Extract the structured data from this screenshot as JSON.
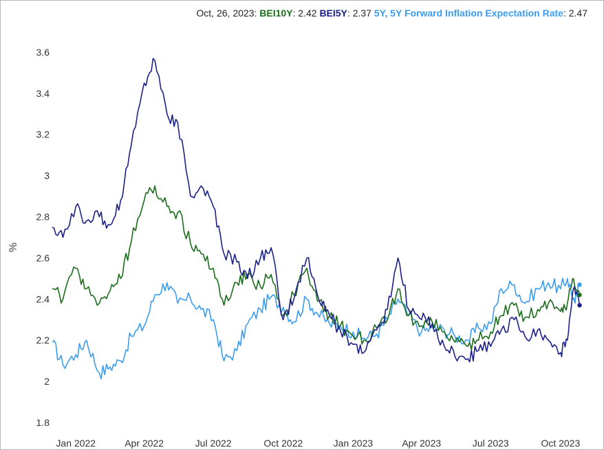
{
  "legend": {
    "date": "Oct, 26, 2023",
    "items": [
      {
        "name": "BEI10Y",
        "value": "2.42",
        "color": "#1a6b1a"
      },
      {
        "name": "BEI5Y",
        "value": "2.37",
        "color": "#1a1f8a"
      },
      {
        "name": "5Y, 5Y Forward Inflation Expectation Rate",
        "value": "2.47",
        "color": "#3a9cf0"
      }
    ]
  },
  "chart_data": {
    "type": "line",
    "ylabel": "%",
    "ylim": [
      1.75,
      3.72
    ],
    "xlim": [
      "2021-12-01",
      "2023-10-31"
    ],
    "yticks": [
      "1.8",
      "2",
      "2.2",
      "2.4",
      "2.6",
      "2.8",
      "3",
      "3.2",
      "3.4",
      "3.6"
    ],
    "xticks": [
      {
        "date": "2022-01-01",
        "label": "Jan 2022"
      },
      {
        "date": "2022-04-01",
        "label": "Apr 2022"
      },
      {
        "date": "2022-07-01",
        "label": "Jul 2022"
      },
      {
        "date": "2022-10-01",
        "label": "Oct 2022"
      },
      {
        "date": "2023-01-01",
        "label": "Jan 2023"
      },
      {
        "date": "2023-04-01",
        "label": "Apr 2023"
      },
      {
        "date": "2023-07-01",
        "label": "Jul 2023"
      },
      {
        "date": "2023-10-01",
        "label": "Oct 2023"
      }
    ],
    "grid": false,
    "series": [
      {
        "name": "5Y, 5Y Forward Inflation Expectation Rate",
        "color": "#3a9cf0",
        "points": [
          [
            "2021-12-01",
            2.19
          ],
          [
            "2021-12-15",
            2.08
          ],
          [
            "2022-01-01",
            2.13
          ],
          [
            "2022-01-15",
            2.2
          ],
          [
            "2022-02-01",
            2.04
          ],
          [
            "2022-02-15",
            2.07
          ],
          [
            "2022-03-01",
            2.1
          ],
          [
            "2022-03-15",
            2.22
          ],
          [
            "2022-04-01",
            2.27
          ],
          [
            "2022-04-15",
            2.42
          ],
          [
            "2022-05-01",
            2.48
          ],
          [
            "2022-05-15",
            2.38
          ],
          [
            "2022-06-01",
            2.4
          ],
          [
            "2022-06-15",
            2.35
          ],
          [
            "2022-07-01",
            2.3
          ],
          [
            "2022-07-15",
            2.1
          ],
          [
            "2022-08-01",
            2.15
          ],
          [
            "2022-08-15",
            2.28
          ],
          [
            "2022-09-01",
            2.35
          ],
          [
            "2022-09-15",
            2.41
          ],
          [
            "2022-10-01",
            2.36
          ],
          [
            "2022-10-15",
            2.29
          ],
          [
            "2022-11-01",
            2.4
          ],
          [
            "2022-11-15",
            2.33
          ],
          [
            "2022-12-01",
            2.28
          ],
          [
            "2022-12-15",
            2.27
          ],
          [
            "2023-01-01",
            2.24
          ],
          [
            "2023-01-15",
            2.21
          ],
          [
            "2023-02-01",
            2.23
          ],
          [
            "2023-02-15",
            2.3
          ],
          [
            "2023-03-01",
            2.4
          ],
          [
            "2023-03-15",
            2.32
          ],
          [
            "2023-04-01",
            2.24
          ],
          [
            "2023-04-15",
            2.26
          ],
          [
            "2023-05-01",
            2.25
          ],
          [
            "2023-05-15",
            2.22
          ],
          [
            "2023-06-01",
            2.2
          ],
          [
            "2023-06-15",
            2.26
          ],
          [
            "2023-07-01",
            2.28
          ],
          [
            "2023-07-15",
            2.45
          ],
          [
            "2023-08-01",
            2.47
          ],
          [
            "2023-08-15",
            2.38
          ],
          [
            "2023-09-01",
            2.45
          ],
          [
            "2023-09-15",
            2.48
          ],
          [
            "2023-10-01",
            2.45
          ],
          [
            "2023-10-10",
            2.5
          ],
          [
            "2023-10-20",
            2.38
          ],
          [
            "2023-10-26",
            2.47
          ]
        ]
      },
      {
        "name": "BEI10Y",
        "color": "#1a6b1a",
        "points": [
          [
            "2021-12-01",
            2.45
          ],
          [
            "2021-12-15",
            2.4
          ],
          [
            "2022-01-01",
            2.55
          ],
          [
            "2022-01-15",
            2.45
          ],
          [
            "2022-02-01",
            2.38
          ],
          [
            "2022-02-15",
            2.44
          ],
          [
            "2022-03-01",
            2.5
          ],
          [
            "2022-03-15",
            2.68
          ],
          [
            "2022-04-01",
            2.88
          ],
          [
            "2022-04-15",
            2.95
          ],
          [
            "2022-05-01",
            2.85
          ],
          [
            "2022-05-15",
            2.82
          ],
          [
            "2022-06-01",
            2.67
          ],
          [
            "2022-06-15",
            2.62
          ],
          [
            "2022-07-01",
            2.55
          ],
          [
            "2022-07-15",
            2.37
          ],
          [
            "2022-08-01",
            2.48
          ],
          [
            "2022-08-15",
            2.52
          ],
          [
            "2022-09-01",
            2.46
          ],
          [
            "2022-09-15",
            2.52
          ],
          [
            "2022-10-01",
            2.32
          ],
          [
            "2022-10-15",
            2.42
          ],
          [
            "2022-11-01",
            2.55
          ],
          [
            "2022-11-15",
            2.39
          ],
          [
            "2022-12-01",
            2.32
          ],
          [
            "2022-12-15",
            2.27
          ],
          [
            "2023-01-01",
            2.22
          ],
          [
            "2023-01-15",
            2.2
          ],
          [
            "2023-02-01",
            2.26
          ],
          [
            "2023-02-15",
            2.3
          ],
          [
            "2023-03-01",
            2.45
          ],
          [
            "2023-03-15",
            2.32
          ],
          [
            "2023-04-01",
            2.27
          ],
          [
            "2023-04-15",
            2.29
          ],
          [
            "2023-05-01",
            2.24
          ],
          [
            "2023-05-15",
            2.19
          ],
          [
            "2023-06-01",
            2.17
          ],
          [
            "2023-06-15",
            2.2
          ],
          [
            "2023-07-01",
            2.24
          ],
          [
            "2023-07-15",
            2.32
          ],
          [
            "2023-08-01",
            2.37
          ],
          [
            "2023-08-15",
            2.31
          ],
          [
            "2023-09-01",
            2.35
          ],
          [
            "2023-09-15",
            2.38
          ],
          [
            "2023-10-01",
            2.34
          ],
          [
            "2023-10-10",
            2.38
          ],
          [
            "2023-10-18",
            2.5
          ],
          [
            "2023-10-26",
            2.42
          ]
        ]
      },
      {
        "name": "BEI5Y",
        "color": "#1a1f8a",
        "points": [
          [
            "2021-12-01",
            2.75
          ],
          [
            "2021-12-15",
            2.7
          ],
          [
            "2022-01-01",
            2.85
          ],
          [
            "2022-01-15",
            2.78
          ],
          [
            "2022-02-01",
            2.8
          ],
          [
            "2022-02-15",
            2.76
          ],
          [
            "2022-03-01",
            2.88
          ],
          [
            "2022-03-15",
            3.15
          ],
          [
            "2022-04-01",
            3.45
          ],
          [
            "2022-04-15",
            3.56
          ],
          [
            "2022-05-01",
            3.3
          ],
          [
            "2022-05-15",
            3.26
          ],
          [
            "2022-06-01",
            2.9
          ],
          [
            "2022-06-15",
            2.95
          ],
          [
            "2022-07-01",
            2.85
          ],
          [
            "2022-07-15",
            2.62
          ],
          [
            "2022-08-01",
            2.58
          ],
          [
            "2022-08-15",
            2.5
          ],
          [
            "2022-09-01",
            2.6
          ],
          [
            "2022-09-15",
            2.65
          ],
          [
            "2022-10-01",
            2.3
          ],
          [
            "2022-10-15",
            2.4
          ],
          [
            "2022-11-01",
            2.6
          ],
          [
            "2022-11-15",
            2.42
          ],
          [
            "2022-12-01",
            2.32
          ],
          [
            "2022-12-15",
            2.25
          ],
          [
            "2023-01-01",
            2.18
          ],
          [
            "2023-01-15",
            2.14
          ],
          [
            "2023-02-01",
            2.25
          ],
          [
            "2023-02-15",
            2.35
          ],
          [
            "2023-03-01",
            2.6
          ],
          [
            "2023-03-15",
            2.35
          ],
          [
            "2023-04-01",
            2.3
          ],
          [
            "2023-04-15",
            2.28
          ],
          [
            "2023-05-01",
            2.17
          ],
          [
            "2023-05-15",
            2.12
          ],
          [
            "2023-06-01",
            2.11
          ],
          [
            "2023-06-15",
            2.15
          ],
          [
            "2023-07-01",
            2.17
          ],
          [
            "2023-07-15",
            2.25
          ],
          [
            "2023-08-01",
            2.3
          ],
          [
            "2023-08-15",
            2.22
          ],
          [
            "2023-09-01",
            2.25
          ],
          [
            "2023-09-15",
            2.2
          ],
          [
            "2023-10-01",
            2.14
          ],
          [
            "2023-10-10",
            2.2
          ],
          [
            "2023-10-18",
            2.45
          ],
          [
            "2023-10-26",
            2.37
          ]
        ]
      }
    ]
  }
}
